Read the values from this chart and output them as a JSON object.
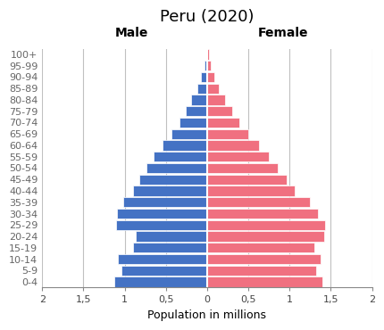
{
  "title": "Peru (2020)",
  "age_groups": [
    "0-4",
    "5-9",
    "10-14",
    "15-19",
    "20-24",
    "25-29",
    "30-34",
    "35-39",
    "40-44",
    "45-49",
    "50-54",
    "55-59",
    "60-64",
    "65-69",
    "70-74",
    "75-79",
    "80-84",
    "85-89",
    "90-94",
    "95-99",
    "100+"
  ],
  "male": [
    1.12,
    1.04,
    1.08,
    0.9,
    0.87,
    1.1,
    1.09,
    1.02,
    0.9,
    0.82,
    0.74,
    0.65,
    0.54,
    0.43,
    0.34,
    0.26,
    0.19,
    0.12,
    0.07,
    0.03,
    0.01
  ],
  "female": [
    1.4,
    1.32,
    1.38,
    1.3,
    1.42,
    1.43,
    1.34,
    1.25,
    1.06,
    0.97,
    0.86,
    0.75,
    0.63,
    0.5,
    0.39,
    0.3,
    0.22,
    0.14,
    0.09,
    0.04,
    0.02
  ],
  "male_color": "#4472C4",
  "female_color": "#F07080",
  "xlim": 2.0,
  "xlabel": "Population in millions",
  "male_label": "Male",
  "female_label": "Female",
  "background_color": "#FFFFFF",
  "grid_color": "#C0C0C0",
  "title_fontsize": 13,
  "axis_label_fontsize": 9,
  "tick_fontsize": 8,
  "bar_height": 0.88,
  "xticks": [
    -2.0,
    -1.5,
    -1.0,
    -0.5,
    0.0,
    0.5,
    1.0,
    1.5,
    2.0
  ],
  "xlabels": [
    "2",
    "1,5",
    "1",
    "0,5",
    "0",
    "0,5",
    "1",
    "1,5",
    "2"
  ]
}
